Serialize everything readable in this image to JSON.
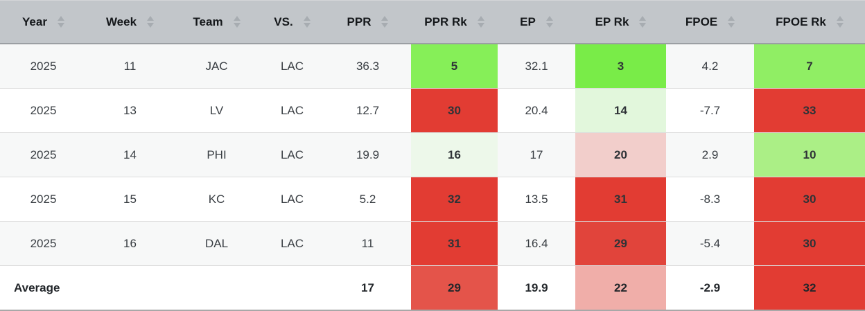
{
  "table": {
    "columns": [
      {
        "key": "year",
        "label": "Year"
      },
      {
        "key": "week",
        "label": "Week"
      },
      {
        "key": "team",
        "label": "Team"
      },
      {
        "key": "vs",
        "label": "VS."
      },
      {
        "key": "ppr",
        "label": "PPR"
      },
      {
        "key": "ppr-rk",
        "label": "PPR Rk"
      },
      {
        "key": "ep",
        "label": "EP"
      },
      {
        "key": "ep-rk",
        "label": "EP Rk"
      },
      {
        "key": "fpoe",
        "label": "FPOE"
      },
      {
        "key": "fpoe-rk",
        "label": "FPOE Rk"
      }
    ],
    "icons": {
      "sort_asc": "triangle-up",
      "sort_desc": "triangle-down"
    },
    "colors": {
      "header_bg": "#c2c6ca",
      "header_border": "#9b9fa3",
      "sort_arrow": "#a7acb1",
      "row_alt_bg": "#f7f8f8",
      "row_border": "#dcdcdc",
      "bottom_border": "#a8a8a8",
      "rank_green_strong": "#86ef58",
      "rank_green_mid": "#abef86",
      "rank_green_light": "#e2f7dc",
      "rank_red_strong": "#e23c33",
      "rank_red_mid": "#e4544a",
      "rank_pink": "#f0aea9"
    },
    "rows": [
      {
        "alt": true,
        "average": false,
        "cells": [
          {
            "v": "2025"
          },
          {
            "v": "11"
          },
          {
            "v": "JAC"
          },
          {
            "v": "LAC"
          },
          {
            "v": "36.3"
          },
          {
            "v": "5",
            "bg": "#86ef58"
          },
          {
            "v": "32.1"
          },
          {
            "v": "3",
            "bg": "#79ec48"
          },
          {
            "v": "4.2"
          },
          {
            "v": "7",
            "bg": "#90ee64"
          }
        ]
      },
      {
        "alt": false,
        "average": false,
        "cells": [
          {
            "v": "2025"
          },
          {
            "v": "13"
          },
          {
            "v": "LV"
          },
          {
            "v": "LAC"
          },
          {
            "v": "12.7"
          },
          {
            "v": "30",
            "bg": "#e23c33"
          },
          {
            "v": "20.4"
          },
          {
            "v": "14",
            "bg": "#e2f7dc"
          },
          {
            "v": "-7.7"
          },
          {
            "v": "33",
            "bg": "#e23c33"
          }
        ]
      },
      {
        "alt": true,
        "average": false,
        "cells": [
          {
            "v": "2025"
          },
          {
            "v": "14"
          },
          {
            "v": "PHI"
          },
          {
            "v": "LAC"
          },
          {
            "v": "19.9"
          },
          {
            "v": "16",
            "bg": "#edf8ea"
          },
          {
            "v": "17"
          },
          {
            "v": "20",
            "bg": "#f2cecb"
          },
          {
            "v": "2.9"
          },
          {
            "v": "10",
            "bg": "#abef86"
          }
        ]
      },
      {
        "alt": false,
        "average": false,
        "cells": [
          {
            "v": "2025"
          },
          {
            "v": "15"
          },
          {
            "v": "KC"
          },
          {
            "v": "LAC"
          },
          {
            "v": "5.2"
          },
          {
            "v": "32",
            "bg": "#e23c33"
          },
          {
            "v": "13.5"
          },
          {
            "v": "31",
            "bg": "#e23c33"
          },
          {
            "v": "-8.3"
          },
          {
            "v": "30",
            "bg": "#e23c33"
          }
        ]
      },
      {
        "alt": true,
        "average": false,
        "cells": [
          {
            "v": "2025"
          },
          {
            "v": "16"
          },
          {
            "v": "DAL"
          },
          {
            "v": "LAC"
          },
          {
            "v": "11"
          },
          {
            "v": "31",
            "bg": "#e23c33"
          },
          {
            "v": "16.4"
          },
          {
            "v": "29",
            "bg": "#e1443b"
          },
          {
            "v": "-5.4"
          },
          {
            "v": "30",
            "bg": "#e23c33"
          }
        ]
      },
      {
        "alt": false,
        "average": true,
        "cells": [
          {
            "v": "Average",
            "align": "left"
          },
          {
            "v": ""
          },
          {
            "v": ""
          },
          {
            "v": ""
          },
          {
            "v": "17"
          },
          {
            "v": "29",
            "bg": "#e4544a"
          },
          {
            "v": "19.9"
          },
          {
            "v": "22",
            "bg": "#f0aea9"
          },
          {
            "v": "-2.9"
          },
          {
            "v": "32",
            "bg": "#e23c33"
          }
        ]
      }
    ]
  }
}
